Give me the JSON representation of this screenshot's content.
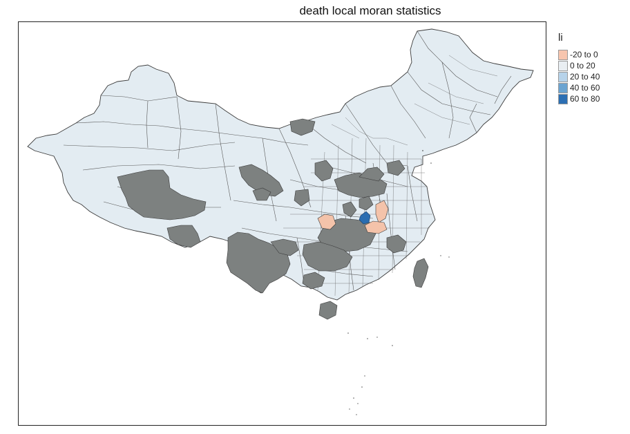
{
  "map": {
    "title": "death local moran statistics",
    "colors": {
      "base": "#e3ecf2",
      "border": "#3a3a3a",
      "missing": "#7d8180",
      "negative": "#f4c3aa",
      "high": "#2a6db1"
    }
  },
  "legend": {
    "title": "li",
    "items": [
      {
        "label": "-20 to 0",
        "color": "#f7c5ae"
      },
      {
        "label": "0 to 20",
        "color": "#e9eef2"
      },
      {
        "label": "20 to 40",
        "color": "#b7d3ea"
      },
      {
        "label": "40 to 60",
        "color": "#6ba4d1"
      },
      {
        "label": "60 to 80",
        "color": "#2c6fb3"
      }
    ]
  }
}
